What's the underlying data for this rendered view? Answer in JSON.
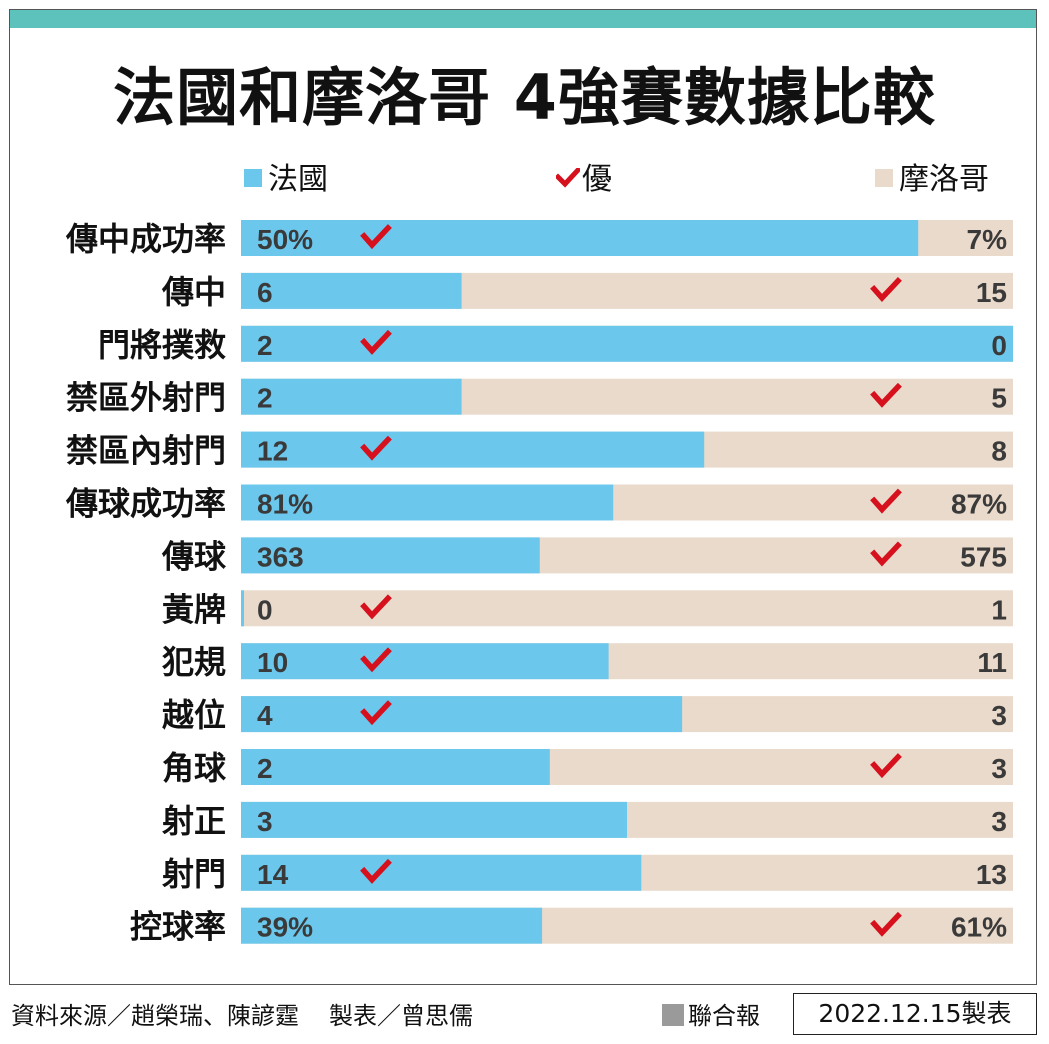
{
  "header": {
    "title": "法國和摩洛哥  4強賽數據比較",
    "accent_color": "#5cc2bb"
  },
  "legend": {
    "france": "法國",
    "better": "優",
    "morocco": "摩洛哥"
  },
  "colors": {
    "france": "#6cc7ec",
    "morocco": "#eadacb",
    "check": "#d6101c",
    "value_text": "#3a3a3a",
    "label_text": "#111111"
  },
  "chart_data": {
    "type": "bar",
    "orientation": "horizontal",
    "stacked_percent": true,
    "series_names": [
      "法國",
      "摩洛哥"
    ],
    "rows": [
      {
        "label": "傳中成功率",
        "france": "50%",
        "morocco": "7%",
        "f": 50,
        "m": 7,
        "better": "france"
      },
      {
        "label": "傳中",
        "france": "6",
        "morocco": "15",
        "f": 6,
        "m": 15,
        "better": "morocco"
      },
      {
        "label": "門將撲救",
        "france": "2",
        "morocco": "0",
        "f": 2,
        "m": 0,
        "better": "france"
      },
      {
        "label": "禁區外射門",
        "france": "2",
        "morocco": "5",
        "f": 2,
        "m": 5,
        "better": "morocco"
      },
      {
        "label": "禁區內射門",
        "france": "12",
        "morocco": "8",
        "f": 12,
        "m": 8,
        "better": "france"
      },
      {
        "label": "傳球成功率",
        "france": "81%",
        "morocco": "87%",
        "f": 81,
        "m": 87,
        "better": "morocco"
      },
      {
        "label": "傳球",
        "france": "363",
        "morocco": "575",
        "f": 363,
        "m": 575,
        "better": "morocco"
      },
      {
        "label": "黃牌",
        "france": "0",
        "morocco": "1",
        "f": 0,
        "m": 1,
        "better": "france"
      },
      {
        "label": "犯規",
        "france": "10",
        "morocco": "11",
        "f": 10,
        "m": 11,
        "better": "france"
      },
      {
        "label": "越位",
        "france": "4",
        "morocco": "3",
        "f": 4,
        "m": 3,
        "better": "france"
      },
      {
        "label": "角球",
        "france": "2",
        "morocco": "3",
        "f": 2,
        "m": 3,
        "better": "morocco"
      },
      {
        "label": "射正",
        "france": "3",
        "morocco": "3",
        "f": 3,
        "m": 3,
        "better": "none"
      },
      {
        "label": "射門",
        "france": "14",
        "morocco": "13",
        "f": 14,
        "m": 13,
        "better": "france"
      },
      {
        "label": "控球率",
        "france": "39%",
        "morocco": "61%",
        "f": 39,
        "m": 61,
        "better": "morocco"
      }
    ]
  },
  "footer": {
    "source": "資料來源／趙榮瑞、陳諺霆",
    "maker": "製表／曾思儒",
    "brand": "聯合報",
    "date": "2022.12.15製表"
  }
}
